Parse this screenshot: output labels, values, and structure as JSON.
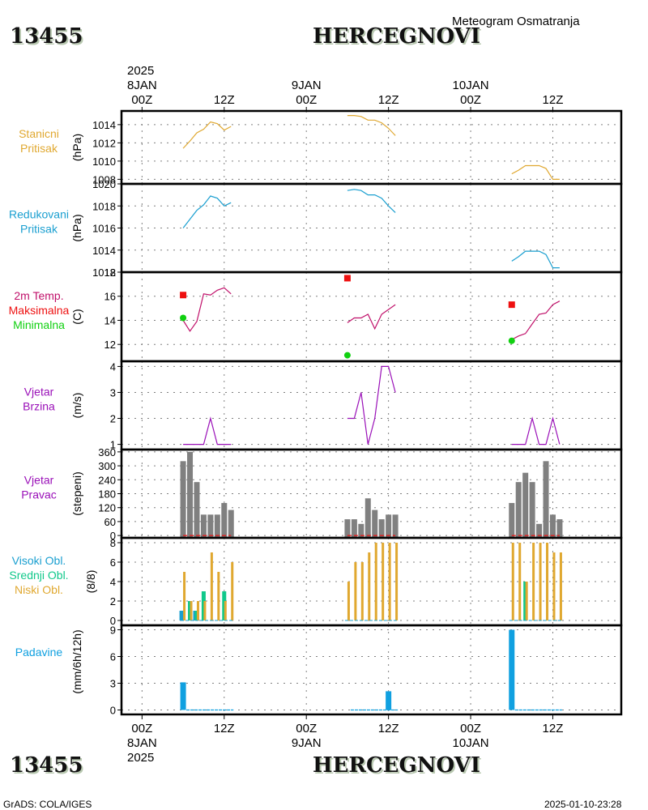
{
  "header": {
    "station_id": "13455",
    "station_name": "HERCEGNOVI",
    "subtitle": "Meteogram Osmatranja"
  },
  "footer": {
    "station_id": "13455",
    "station_name": "HERCEGNOVI",
    "credit": "GrADS: COLA/IGES",
    "timestamp": "2025-01-10-23:28"
  },
  "time_axis": {
    "year": "2025",
    "range_hours": [
      -3,
      70
    ],
    "ticks": [
      {
        "hour": 0,
        "label": "00Z",
        "date": "8JAN"
      },
      {
        "hour": 12,
        "label": "12Z",
        "date": ""
      },
      {
        "hour": 24,
        "label": "00Z",
        "date": "9JAN"
      },
      {
        "hour": 36,
        "label": "12Z",
        "date": ""
      },
      {
        "hour": 48,
        "label": "00Z",
        "date": "10JAN"
      },
      {
        "hour": 60,
        "label": "12Z",
        "date": ""
      }
    ]
  },
  "colors": {
    "station_pressure": "#e0a830",
    "reduced_pressure": "#1a9fd0",
    "temperature": "#c0106a",
    "tmax": "#ee1010",
    "tmin": "#10d010",
    "wind_speed": "#9a10b8",
    "wind_dir": "#808080",
    "wind_dir_base": "#ee1010",
    "cloud_high": "#1a9fd0",
    "cloud_mid": "#10c88a",
    "cloud_low": "#e0a830",
    "precip": "#10a0e0",
    "grid": "#808080"
  },
  "chart_data": [
    {
      "type": "line",
      "panel": "station_pressure",
      "labels": [
        "Stanicni",
        "Pritisak"
      ],
      "ylabel": "(hPa)",
      "ylim": [
        1007.5,
        1015.5
      ],
      "yticks": [
        1008,
        1010,
        1012,
        1014
      ],
      "segments": [
        {
          "x": [
            6,
            7,
            8,
            9,
            10,
            11,
            12,
            13
          ],
          "y": [
            1011.4,
            1012.2,
            1013.1,
            1013.5,
            1014.3,
            1014.1,
            1013.4,
            1013.8
          ]
        },
        {
          "x": [
            30,
            31,
            32,
            33,
            34,
            35,
            36,
            37
          ],
          "y": [
            1015.0,
            1015.0,
            1014.9,
            1014.5,
            1014.5,
            1014.2,
            1013.6,
            1012.8
          ]
        },
        {
          "x": [
            54,
            55,
            56,
            57,
            58,
            59,
            60,
            61
          ],
          "y": [
            1008.6,
            1009.0,
            1009.5,
            1009.5,
            1009.5,
            1009.2,
            1008.0,
            1008.0
          ]
        }
      ]
    },
    {
      "type": "line",
      "panel": "reduced_pressure",
      "labels": [
        "Redukovani",
        "Pritisak"
      ],
      "ylabel": "(hPa)",
      "ylim": [
        1012,
        1020
      ],
      "yticks": [
        1012,
        1014,
        1016,
        1018,
        1020
      ],
      "segments": [
        {
          "x": [
            6,
            7,
            8,
            9,
            10,
            11,
            12,
            13
          ],
          "y": [
            1016.0,
            1016.8,
            1017.6,
            1018.1,
            1018.9,
            1018.7,
            1018.0,
            1018.3
          ]
        },
        {
          "x": [
            30,
            31,
            32,
            33,
            34,
            35,
            36,
            37
          ],
          "y": [
            1019.4,
            1019.5,
            1019.4,
            1019.0,
            1019.0,
            1018.7,
            1018.0,
            1017.4
          ]
        },
        {
          "x": [
            54,
            55,
            56,
            57,
            58,
            59,
            60,
            61
          ],
          "y": [
            1013.0,
            1013.4,
            1013.9,
            1013.9,
            1013.9,
            1013.6,
            1012.4,
            1012.4
          ]
        }
      ]
    },
    {
      "type": "line",
      "panel": "temperature",
      "labels": [
        "2m Temp.",
        "Maksimalna",
        "Minimalna"
      ],
      "ylabel": "(C)",
      "ylim": [
        10.6,
        18
      ],
      "yticks": [
        12,
        14,
        16,
        18
      ],
      "segments": [
        {
          "x": [
            6,
            7,
            8,
            9,
            10,
            11,
            12,
            13
          ],
          "y": [
            14.0,
            13.1,
            13.9,
            16.2,
            16.1,
            16.5,
            16.7,
            16.2
          ]
        },
        {
          "x": [
            30,
            31,
            32,
            33,
            34,
            35,
            36,
            37
          ],
          "y": [
            13.8,
            14.2,
            14.2,
            14.5,
            13.3,
            14.5,
            14.9,
            15.3
          ]
        },
        {
          "x": [
            54,
            55,
            56,
            57,
            58,
            59,
            60,
            61
          ],
          "y": [
            12.4,
            12.7,
            12.9,
            13.7,
            14.5,
            14.6,
            15.3,
            15.6
          ]
        }
      ],
      "tmax": [
        {
          "x": 6,
          "y": 16.1
        },
        {
          "x": 30,
          "y": 17.5
        },
        {
          "x": 54,
          "y": 15.3
        }
      ],
      "tmin": [
        {
          "x": 6,
          "y": 14.2
        },
        {
          "x": 30,
          "y": 11.1
        },
        {
          "x": 54,
          "y": 12.3
        }
      ]
    },
    {
      "type": "line",
      "panel": "wind_speed",
      "labels": [
        "Vjetar",
        "Brzina"
      ],
      "ylabel": "(m/s)",
      "ylim": [
        0.8,
        4.2
      ],
      "yticks": [
        1,
        2,
        3,
        4
      ],
      "segments": [
        {
          "x": [
            6,
            7,
            8,
            9,
            10,
            11,
            12,
            13
          ],
          "y": [
            1,
            1,
            1,
            1,
            2,
            1,
            1,
            1
          ]
        },
        {
          "x": [
            30,
            31,
            32,
            33,
            34,
            35,
            36,
            37
          ],
          "y": [
            2,
            2,
            3,
            1,
            2,
            4,
            4,
            3
          ]
        },
        {
          "x": [
            54,
            55,
            56,
            57,
            58,
            59,
            60,
            61
          ],
          "y": [
            1,
            1,
            1,
            2,
            1,
            1,
            2,
            1
          ]
        }
      ]
    },
    {
      "type": "bar",
      "panel": "wind_direction",
      "labels": [
        "Vjetar",
        "Pravac"
      ],
      "ylabel": "(stepeni)",
      "ylim": [
        -10,
        370
      ],
      "yticks": [
        0,
        60,
        120,
        180,
        240,
        300,
        360
      ],
      "x": [
        6,
        7,
        8,
        9,
        10,
        11,
        12,
        13,
        30,
        31,
        32,
        33,
        34,
        35,
        36,
        37,
        54,
        55,
        56,
        57,
        58,
        59,
        60,
        61
      ],
      "values": [
        320,
        360,
        230,
        90,
        90,
        90,
        140,
        110,
        70,
        70,
        50,
        160,
        110,
        70,
        90,
        90,
        140,
        230,
        270,
        230,
        50,
        320,
        90,
        70
      ]
    },
    {
      "type": "bar",
      "panel": "clouds",
      "labels": [
        "Visoki Obl.",
        "Srednji Obl.",
        "Niski Obl."
      ],
      "ylabel": "(8/8)",
      "ylim": [
        -0.5,
        8.5
      ],
      "yticks": [
        0,
        2,
        4,
        6,
        8
      ],
      "x": [
        6,
        7,
        8,
        9,
        10,
        11,
        12,
        13,
        30,
        31,
        32,
        33,
        34,
        35,
        36,
        37,
        54,
        55,
        56,
        57,
        58,
        59,
        60,
        61
      ],
      "series": [
        {
          "name": "Visoki Obl.",
          "values": [
            1,
            0,
            1,
            0,
            0,
            0,
            0,
            0,
            0,
            0,
            0,
            0,
            0,
            0,
            0,
            0,
            0,
            0,
            0,
            0,
            0,
            0,
            0,
            0
          ]
        },
        {
          "name": "Srednji Obl.",
          "values": [
            0,
            2,
            1,
            3,
            0,
            0,
            3,
            0,
            0,
            0,
            0,
            0,
            0,
            0,
            0,
            0,
            0,
            0,
            4,
            0,
            0,
            0,
            0,
            0
          ]
        },
        {
          "name": "Niski Obl.",
          "values": [
            5,
            2,
            2,
            2,
            7,
            5,
            2,
            6,
            4,
            6,
            6,
            7,
            8,
            8,
            8,
            8,
            8,
            8,
            4,
            8,
            8,
            8,
            7,
            7
          ]
        }
      ]
    },
    {
      "type": "bar",
      "panel": "precipitation",
      "labels": [
        "Padavine"
      ],
      "ylabel": "(mm/6h/12h)",
      "ylim": [
        -0.5,
        9.5
      ],
      "yticks": [
        0,
        3,
        6,
        9
      ],
      "x": [
        6,
        7,
        8,
        9,
        10,
        11,
        12,
        13,
        30,
        31,
        32,
        33,
        34,
        35,
        36,
        37,
        54,
        55,
        56,
        57,
        58,
        59,
        60,
        61
      ],
      "values": [
        3.1,
        0,
        0,
        0,
        0,
        0,
        0,
        0,
        0,
        0,
        0,
        0,
        0,
        0,
        2.1,
        0,
        9.0,
        0,
        0,
        0,
        0,
        0,
        0,
        0
      ]
    }
  ]
}
